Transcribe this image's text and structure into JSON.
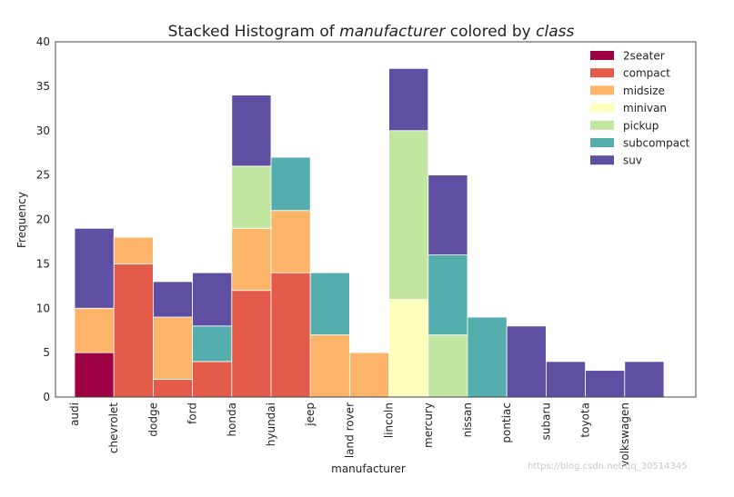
{
  "chart_data": {
    "type": "bar",
    "stacked": true,
    "title_prefix": "Stacked Histogram of ",
    "title_var1": "manufacturer",
    "title_mid": " colored by ",
    "title_var2": "class",
    "xlabel": "manufacturer",
    "ylabel": "Frequency",
    "ylim": [
      0,
      40
    ],
    "yticks": [
      0,
      5,
      10,
      15,
      20,
      25,
      30,
      35,
      40
    ],
    "grid": false,
    "legend_position": "top-right",
    "categories": [
      "audi",
      "chevrolet",
      "dodge",
      "ford",
      "honda",
      "hyundai",
      "jeep",
      "land rover",
      "lincoln",
      "mercury",
      "nissan",
      "pontiac",
      "subaru",
      "toyota",
      "volkswagen"
    ],
    "series": [
      {
        "name": "2seater",
        "color": "#9e0142",
        "values": [
          5,
          0,
          0,
          0,
          0,
          0,
          0,
          0,
          0,
          0,
          0,
          0,
          0,
          0,
          0
        ]
      },
      {
        "name": "compact",
        "color": "#e45c49",
        "values": [
          0,
          15,
          2,
          4,
          12,
          14,
          0,
          0,
          0,
          0,
          0,
          0,
          0,
          0,
          0
        ]
      },
      {
        "name": "midsize",
        "color": "#fbb468",
        "values": [
          5,
          3,
          7,
          0,
          7,
          7,
          7,
          5,
          0,
          0,
          0,
          0,
          0,
          0,
          0
        ]
      },
      {
        "name": "minivan",
        "color": "#fefebd",
        "values": [
          0,
          0,
          0,
          0,
          0,
          0,
          0,
          0,
          11,
          0,
          0,
          0,
          0,
          0,
          0
        ]
      },
      {
        "name": "pickup",
        "color": "#c1e6a0",
        "values": [
          0,
          0,
          0,
          0,
          7,
          0,
          0,
          0,
          19,
          7,
          0,
          0,
          0,
          0,
          0
        ]
      },
      {
        "name": "subcompact",
        "color": "#54aead",
        "values": [
          0,
          0,
          0,
          4,
          0,
          6,
          7,
          0,
          0,
          9,
          9,
          0,
          0,
          0,
          0
        ]
      },
      {
        "name": "suv",
        "color": "#5e4fa2",
        "values": [
          9,
          0,
          4,
          6,
          8,
          0,
          0,
          0,
          7,
          9,
          0,
          8,
          4,
          3,
          4
        ]
      }
    ]
  },
  "watermark": "https://blog.csdn.net/qq_30514345"
}
